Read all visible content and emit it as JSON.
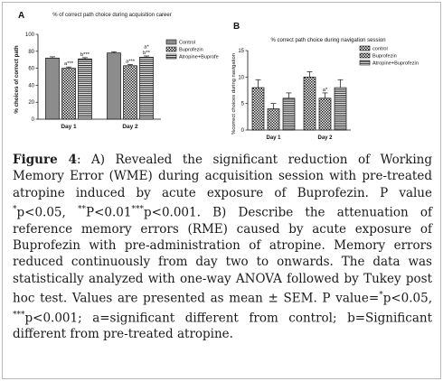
{
  "chart_data": [
    {
      "type": "bar",
      "panel_label": "A",
      "title": "% of correct path choice during acquisition career",
      "ylabel": "% choices of correct path",
      "ylim": [
        0,
        100
      ],
      "yticks": [
        "0",
        "20",
        "40",
        "60",
        "80",
        "100"
      ],
      "categories": [
        "Day 1",
        "Day 2"
      ],
      "series": [
        {
          "name": "Control",
          "values": [
            72,
            78
          ],
          "errors": [
            1.5,
            1.5
          ],
          "annotations": [
            "",
            ""
          ]
        },
        {
          "name": "Buprofezin",
          "values": [
            60,
            63
          ],
          "errors": [
            1.5,
            1.5
          ],
          "annotations": [
            "a***",
            "a***"
          ]
        },
        {
          "name": "Atropine+Buprofezin",
          "values": [
            71,
            73
          ],
          "errors": [
            1.5,
            1.5
          ],
          "annotations": [
            "b***",
            "a*\nb**"
          ]
        }
      ],
      "legend_position": "top-right"
    },
    {
      "type": "bar",
      "panel_label": "B",
      "title": "% correct path choice during navigation session",
      "ylabel": "%correct choices during navigation",
      "ylim": [
        0,
        15
      ],
      "yticks": [
        "0",
        "5",
        "10",
        "15"
      ],
      "categories": [
        "Day 1",
        "Day 2"
      ],
      "series": [
        {
          "name": "control",
          "values": [
            8,
            10
          ],
          "errors": [
            1.5,
            1.0
          ],
          "annotations": [
            "",
            ""
          ]
        },
        {
          "name": "Buprofezin",
          "values": [
            4,
            6
          ],
          "errors": [
            1.0,
            1.0
          ],
          "annotations": [
            "",
            "a*"
          ]
        },
        {
          "name": "Atropine+Buprofezin",
          "values": [
            6,
            8
          ],
          "errors": [
            1.0,
            1.5
          ],
          "annotations": [
            "",
            ""
          ]
        }
      ],
      "legend_position": "top-right"
    }
  ],
  "caption": {
    "label": "Figure 4",
    "text_1": ": A) Revealed the significant reduction of Working Memory Error (WME) during acquisition session with pre-treated atropine induced by acute exposure of Buprofezin. P value ",
    "sup_1": "*",
    "text_2": "p<0.05, ",
    "sup_2": "**",
    "text_3": "P<0.01",
    "sup_3": "***",
    "text_4": "p<0.001. B) Describe the attenuation of reference memory errors (RME) caused by acute exposure of Buprofezin with pre-administration of atropine. Memory errors reduced continuously from day two to onwards. The data was statistically analyzed with one-way ANOVA followed by Tukey post hoc test. Values are presented as mean ± SEM. P value=",
    "sup_4": "*",
    "text_5": "p<0.05, ",
    "sup_5": "***",
    "text_6": "p<0.001; a=significant different from control; b=Significant different from pre-treated atropine."
  }
}
